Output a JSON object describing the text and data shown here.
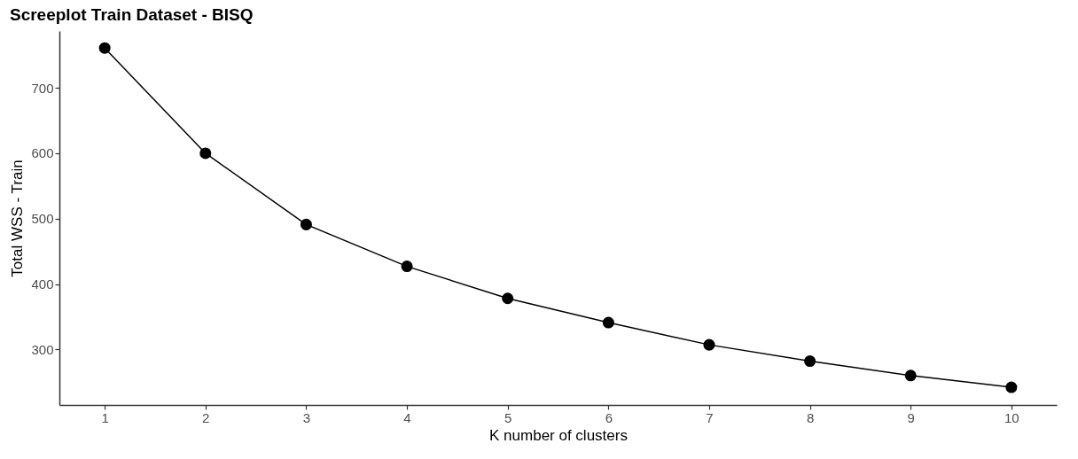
{
  "chart_data": {
    "type": "line",
    "title": "Screeplot Train Dataset - BISQ",
    "xlabel": "K number of clusters",
    "ylabel": "Total WSS - Train",
    "x": [
      1,
      2,
      3,
      4,
      5,
      6,
      7,
      8,
      9,
      10
    ],
    "series": [
      {
        "color": "#000000",
        "values": [
          761,
          600,
          491,
          427,
          378,
          341,
          307,
          282,
          260,
          242
        ]
      }
    ],
    "xlim": [
      0.55,
      10.45
    ],
    "xticks": [
      1,
      2,
      3,
      4,
      5,
      6,
      7,
      8,
      9,
      10
    ],
    "ylim": [
      215,
      787
    ],
    "yticks": [
      300,
      400,
      500,
      600,
      700
    ],
    "grid": false,
    "marker": "circle",
    "line_style": "solid"
  }
}
